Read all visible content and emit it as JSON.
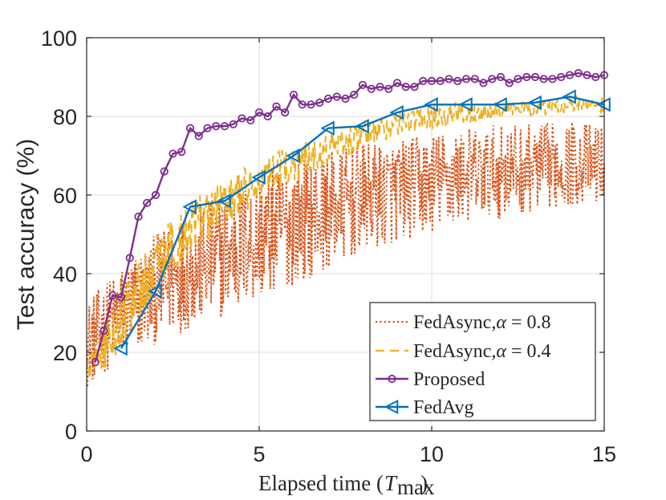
{
  "chart_data": {
    "type": "line",
    "title": "",
    "xlabel": "Elapsed time (T_max)",
    "ylabel": "Test accuracy (%)",
    "xlim": [
      0,
      15
    ],
    "ylim": [
      0,
      100
    ],
    "xticks": [
      0,
      5,
      10,
      15
    ],
    "yticks": [
      0,
      20,
      40,
      60,
      80,
      100
    ],
    "grid": true,
    "legend_position": "bottom-right",
    "series": [
      {
        "name": "FedAsync,α = 0.8",
        "legend_text": "FedAsync,",
        "legend_math": "α = 0.8",
        "style": "dotted",
        "color": "#D95319",
        "envelope_t": [
          0,
          1,
          2,
          3,
          4,
          5,
          6,
          7,
          8,
          9,
          10,
          11,
          12,
          13,
          14,
          15
        ],
        "envelope_mean": [
          22,
          30,
          36,
          41,
          45,
          49,
          53,
          56,
          59,
          61,
          63,
          65,
          66,
          67,
          68,
          68
        ],
        "envelope_amp": [
          11,
          12,
          14,
          15,
          16,
          16,
          16,
          15,
          14,
          13,
          13,
          12,
          12,
          11,
          11,
          10
        ]
      },
      {
        "name": "FedAsync,α = 0.4",
        "legend_text": "FedAsync,",
        "legend_math": "α = 0.4",
        "style": "dashed",
        "color": "#EDB120",
        "envelope_t": [
          0,
          1,
          2,
          3,
          4,
          5,
          6,
          7,
          8,
          9,
          10,
          11,
          12,
          13,
          14,
          15
        ],
        "envelope_mean": [
          15,
          28,
          42,
          52,
          58,
          63,
          68,
          72,
          75,
          78,
          80,
          81,
          82,
          82,
          83,
          83
        ],
        "envelope_amp": [
          4,
          8,
          8,
          7,
          6,
          6,
          5,
          4,
          4,
          3,
          3,
          3,
          2,
          2,
          2,
          2
        ]
      },
      {
        "name": "Proposed",
        "marker": "circle",
        "color": "#7E2F8E",
        "x": [
          0.25,
          0.5,
          0.75,
          1.0,
          1.25,
          1.5,
          1.75,
          2.0,
          2.25,
          2.5,
          2.75,
          3.0,
          3.25,
          3.5,
          3.75,
          4.0,
          4.25,
          4.5,
          4.75,
          5.0,
          5.25,
          5.5,
          5.75,
          6.0,
          6.25,
          6.5,
          6.75,
          7.0,
          7.25,
          7.5,
          7.75,
          8.0,
          8.25,
          8.5,
          8.75,
          9.0,
          9.25,
          9.5,
          9.75,
          10.0,
          10.25,
          10.5,
          10.75,
          11.0,
          11.25,
          11.5,
          11.75,
          12.0,
          12.25,
          12.5,
          12.75,
          13.0,
          13.25,
          13.5,
          13.75,
          14.0,
          14.25,
          14.5,
          14.75,
          15.0
        ],
        "y": [
          17.5,
          25.5,
          34.5,
          34,
          44,
          54.5,
          58,
          60,
          66,
          70.5,
          71,
          77,
          75,
          77,
          77.5,
          77.5,
          78,
          79.5,
          79,
          81,
          80,
          82.5,
          81,
          85.5,
          83,
          83,
          83.5,
          84.5,
          85,
          84.5,
          85.5,
          88,
          87,
          87.5,
          87,
          88.5,
          87.5,
          87.5,
          89,
          89,
          89,
          89.5,
          89,
          89.5,
          89.5,
          88.5,
          89.5,
          90,
          88.5,
          89.5,
          90,
          90,
          89.5,
          89.5,
          90,
          90.5,
          91,
          90.5,
          90,
          90.5
        ]
      },
      {
        "name": "FedAvg",
        "marker": "left-triangle",
        "color": "#0072BD",
        "x": [
          1,
          2,
          3,
          4,
          5,
          6,
          7,
          8,
          9,
          10,
          11,
          12,
          13,
          14,
          15
        ],
        "y": [
          21,
          35.5,
          57,
          58.5,
          64.5,
          70,
          77,
          77.5,
          81,
          83,
          83,
          83,
          83.5,
          85,
          83
        ]
      }
    ]
  }
}
